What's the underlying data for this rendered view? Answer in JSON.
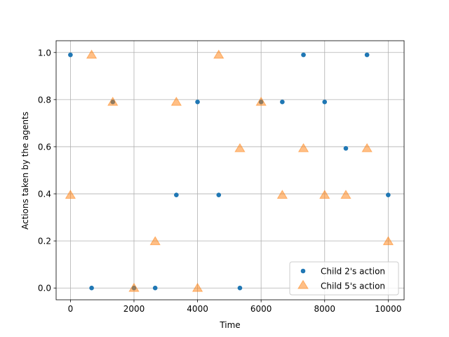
{
  "chart_data": {
    "type": "scatter",
    "xlabel": "Time",
    "ylabel": "Actions taken by the agents",
    "xlim": [
      -450,
      10500
    ],
    "ylim": [
      -0.05,
      1.05
    ],
    "xticks": [
      0,
      2000,
      4000,
      6000,
      8000,
      10000
    ],
    "xtick_labels": [
      "0",
      "2000",
      "4000",
      "6000",
      "8000",
      "10000"
    ],
    "yticks": [
      0.0,
      0.2,
      0.4,
      0.6,
      0.8,
      1.0
    ],
    "ytick_labels": [
      "0.0",
      "0.2",
      "0.4",
      "0.6",
      "0.8",
      "1.0"
    ],
    "grid": true,
    "legend_position": "bottom-right",
    "series": [
      {
        "name": "Child 2's action",
        "marker": "circle",
        "color": "#1f77b4",
        "x": [
          0,
          667,
          1333,
          2000,
          2667,
          3333,
          4000,
          4667,
          5333,
          6000,
          6667,
          7333,
          8000,
          8667,
          9333,
          10000
        ],
        "y": [
          0.99,
          0.0,
          0.79,
          0.0,
          0.0,
          0.395,
          0.79,
          0.395,
          0.0,
          0.79,
          0.79,
          0.99,
          0.79,
          0.593,
          0.99,
          0.395
        ]
      },
      {
        "name": "Child 5's action",
        "marker": "triangle",
        "color": "#ff7f0e",
        "x": [
          0,
          667,
          1333,
          2000,
          2667,
          3333,
          4000,
          4667,
          5333,
          6000,
          6667,
          7333,
          8000,
          8667,
          9333,
          10000
        ],
        "y": [
          0.395,
          0.99,
          0.79,
          0.0,
          0.198,
          0.79,
          0.0,
          0.99,
          0.593,
          0.79,
          0.395,
          0.593,
          0.395,
          0.395,
          0.593,
          0.198
        ]
      }
    ]
  }
}
